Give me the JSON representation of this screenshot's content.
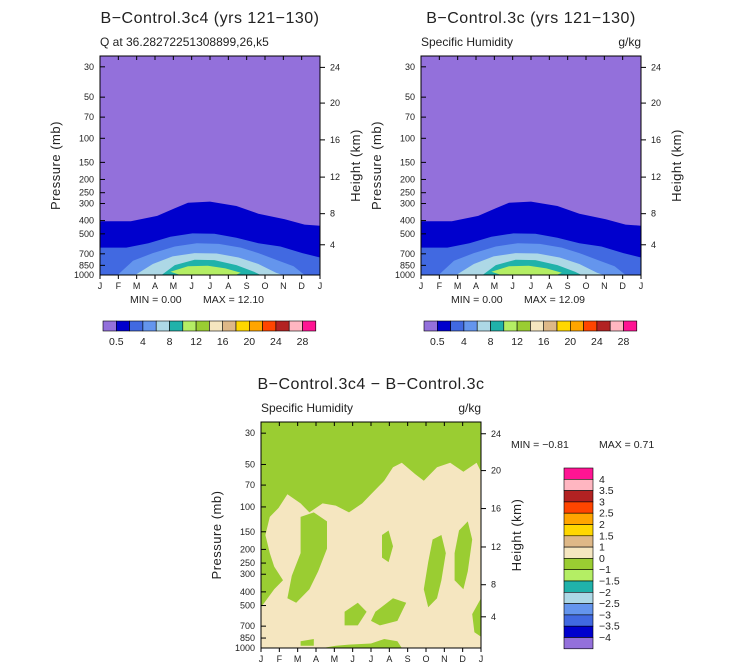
{
  "chart_data": [
    {
      "type": "contour",
      "title": "B−Control.3c4 (yrs 121−130)",
      "subtitle_left": "Q at 36.28272251308899,26,k5",
      "subtitle_right": "",
      "xlabel": "",
      "ylabel": "Pressure (mb)",
      "y2label": "Height (km)",
      "x_ticks": [
        "J",
        "F",
        "M",
        "A",
        "M",
        "J",
        "J",
        "A",
        "S",
        "O",
        "N",
        "D",
        "J"
      ],
      "y_ticks": [
        "30",
        "50",
        "70",
        "100",
        "150",
        "200",
        "250",
        "300",
        "400",
        "500",
        "700",
        "850",
        "1000"
      ],
      "height_ticks": [
        "24",
        "20",
        "16",
        "12",
        "8",
        "4"
      ],
      "min_text": "MIN =    0.00",
      "max_text": "MAX =    12.10",
      "field": "specific humidity",
      "units": "g/kg",
      "max_month": "Jul"
    },
    {
      "type": "contour",
      "title": "B−Control.3c (yrs 121−130)",
      "subtitle_left": "Specific Humidity",
      "subtitle_right": "g/kg",
      "xlabel": "",
      "ylabel": "Pressure (mb)",
      "y2label": "Height (km)",
      "x_ticks": [
        "J",
        "F",
        "M",
        "A",
        "M",
        "J",
        "J",
        "A",
        "S",
        "O",
        "N",
        "D",
        "J"
      ],
      "y_ticks": [
        "30",
        "50",
        "70",
        "100",
        "150",
        "200",
        "250",
        "300",
        "400",
        "500",
        "700",
        "850",
        "1000"
      ],
      "height_ticks": [
        "24",
        "20",
        "16",
        "12",
        "8",
        "4"
      ],
      "min_text": "MIN =    0.00",
      "max_text": "MAX =    12.09",
      "field": "specific humidity",
      "units": "g/kg",
      "max_month": "Jul"
    },
    {
      "type": "contour",
      "title": "B−Control.3c4 − B−Control.3c",
      "subtitle_left": "Specific Humidity",
      "subtitle_right": "g/kg",
      "xlabel": "",
      "ylabel": "Pressure (mb)",
      "y2label": "Height (km)",
      "x_ticks": [
        "J",
        "F",
        "M",
        "A",
        "M",
        "J",
        "J",
        "A",
        "S",
        "O",
        "N",
        "D",
        "J"
      ],
      "y_ticks": [
        "30",
        "50",
        "70",
        "100",
        "150",
        "200",
        "250",
        "300",
        "400",
        "500",
        "700",
        "850",
        "1000"
      ],
      "height_ticks": [
        "24",
        "20",
        "16",
        "12",
        "8",
        "4"
      ],
      "min_text": "MIN =   −0.81",
      "max_text": "MAX =    0.71",
      "field": "specific humidity difference",
      "units": "g/kg",
      "dominant_ranges": [
        "−1 to 0",
        "0 to 1"
      ]
    }
  ],
  "colorbar_main": {
    "labels": [
      "0.5",
      "4",
      "8",
      "12",
      "16",
      "20",
      "24",
      "28"
    ],
    "colors": [
      "#9370DB",
      "#0000CD",
      "#4169E1",
      "#6495ED",
      "#ADD8E6",
      "#20B2AA",
      "#B4EE64",
      "#9ACD32",
      "#F5E6C0",
      "#DEB887",
      "#FFD700",
      "#FFA500",
      "#FF4500",
      "#B22222",
      "#FFB6C1",
      "#FF1493"
    ]
  },
  "colorbar_diff": {
    "labels": [
      "4",
      "3.5",
      "3",
      "2.5",
      "2",
      "1.5",
      "1",
      "0",
      "−1",
      "−1.5",
      "−2",
      "−2.5",
      "−3",
      "−3.5",
      "−4"
    ],
    "colors_top_to_bottom": [
      "#FF1493",
      "#FFB6C1",
      "#B22222",
      "#FF4500",
      "#FFA500",
      "#FFD700",
      "#DEB887",
      "#F5E6C0",
      "#9ACD32",
      "#B4EE64",
      "#20B2AA",
      "#ADD8E6",
      "#6495ED",
      "#4169E1",
      "#0000CD",
      "#9370DB"
    ]
  }
}
